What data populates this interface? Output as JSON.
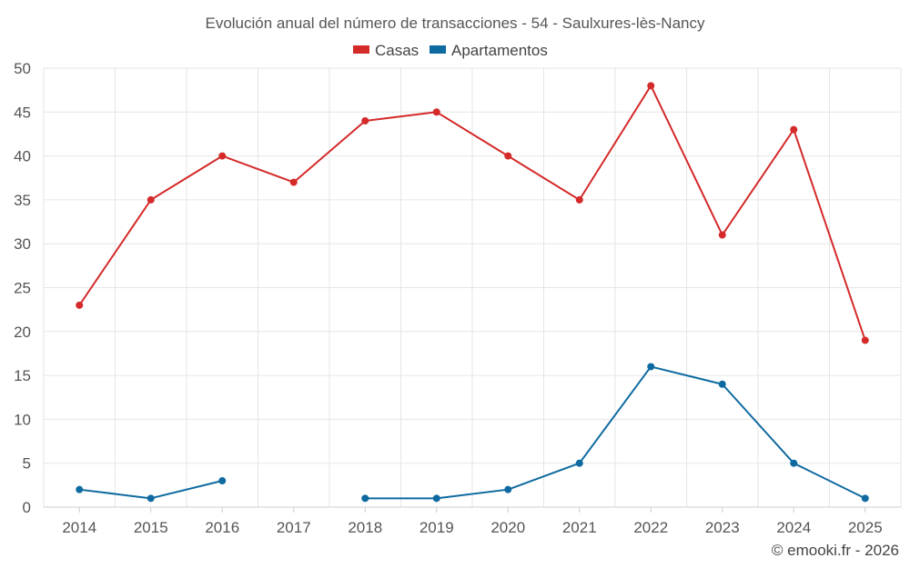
{
  "chart_data": {
    "type": "line",
    "title": "Evolución anual del número de transacciones - 54 - Saulxures-lès-Nancy",
    "categories": [
      "2014",
      "2015",
      "2016",
      "2017",
      "2018",
      "2019",
      "2020",
      "2021",
      "2022",
      "2023",
      "2024",
      "2025"
    ],
    "series": [
      {
        "name": "Casas",
        "color": "#d42a2a",
        "values": [
          23,
          35,
          40,
          37,
          44,
          45,
          40,
          35,
          48,
          31,
          43,
          19
        ]
      },
      {
        "name": "Apartamentos",
        "color": "#0e6aa0",
        "values": [
          2,
          1,
          3,
          null,
          1,
          1,
          2,
          5,
          16,
          14,
          5,
          1
        ]
      }
    ],
    "ylim": [
      0,
      50
    ],
    "yticks": [
      0,
      5,
      10,
      15,
      20,
      25,
      30,
      35,
      40,
      45,
      50
    ],
    "xlabel": "",
    "ylabel": "",
    "grid": true,
    "legend_position": "top-center"
  },
  "credit": "© emooki.fr - 2026"
}
